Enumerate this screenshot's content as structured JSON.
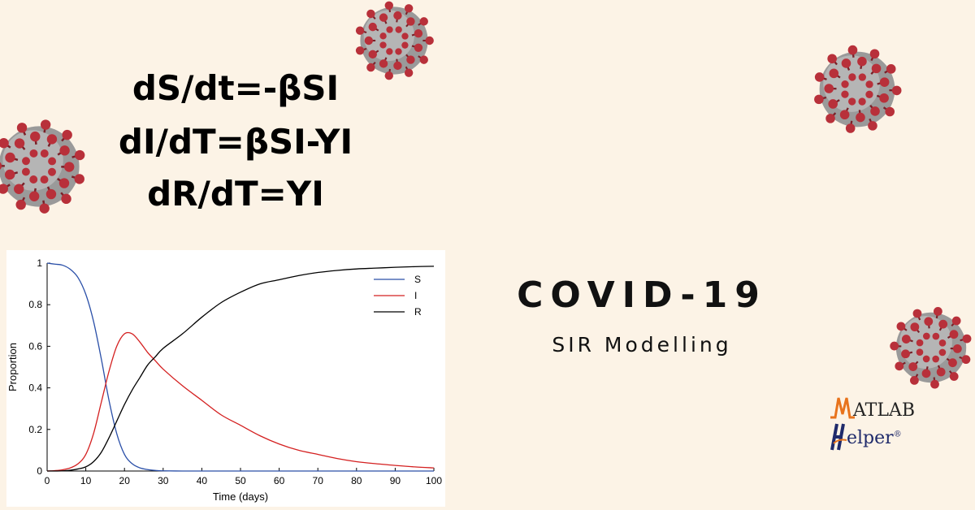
{
  "equations": [
    "dS/dt=-βSI",
    "dI/dT=βSI-YI",
    "dR/dT=YI"
  ],
  "title": "COVID-19",
  "subtitle": "SIR Modelling",
  "logo": {
    "line1": "ATLAB",
    "line2": "elper",
    "reg": "®"
  },
  "colors": {
    "background": "#fcf3e6",
    "virus": "#b8303a",
    "S": "#2a4fa8",
    "I": "#d42020",
    "R": "#000000",
    "logo_orange": "#e8731c"
  },
  "chart_data": {
    "type": "line",
    "xlabel": "Time (days)",
    "ylabel": "Proportion",
    "xlim": [
      0,
      100
    ],
    "ylim": [
      0,
      1
    ],
    "xticks": [
      0,
      10,
      20,
      30,
      40,
      50,
      60,
      70,
      80,
      90,
      100
    ],
    "yticks": [
      0,
      0.2,
      0.4,
      0.6,
      0.8,
      1
    ],
    "ytick_labels": [
      "0",
      "0.2",
      "0.4",
      "0.6",
      "0.8",
      "1"
    ],
    "legend": "top-right",
    "x": [
      0,
      2,
      4,
      6,
      8,
      10,
      12,
      14,
      16,
      18,
      20,
      22,
      24,
      26,
      28,
      30,
      35,
      40,
      45,
      50,
      55,
      60,
      65,
      70,
      75,
      80,
      85,
      90,
      95,
      100
    ],
    "series": [
      {
        "name": "S",
        "color": "#2a4fa8",
        "values": [
          1.0,
          0.995,
          0.99,
          0.97,
          0.93,
          0.85,
          0.72,
          0.54,
          0.34,
          0.18,
          0.08,
          0.035,
          0.015,
          0.007,
          0.003,
          0.001,
          0,
          0,
          0,
          0,
          0,
          0,
          0,
          0,
          0,
          0,
          0,
          0,
          0,
          0
        ]
      },
      {
        "name": "I",
        "color": "#d42020",
        "values": [
          0.0,
          0.002,
          0.006,
          0.015,
          0.035,
          0.08,
          0.18,
          0.33,
          0.48,
          0.6,
          0.66,
          0.66,
          0.62,
          0.57,
          0.53,
          0.49,
          0.41,
          0.34,
          0.27,
          0.22,
          0.17,
          0.13,
          0.1,
          0.08,
          0.06,
          0.045,
          0.035,
          0.027,
          0.02,
          0.015
        ]
      },
      {
        "name": "R",
        "color": "#000000",
        "values": [
          0.0,
          0.0,
          0.001,
          0.004,
          0.01,
          0.02,
          0.045,
          0.09,
          0.16,
          0.24,
          0.32,
          0.39,
          0.45,
          0.51,
          0.55,
          0.59,
          0.66,
          0.74,
          0.81,
          0.86,
          0.9,
          0.92,
          0.94,
          0.955,
          0.965,
          0.972,
          0.976,
          0.98,
          0.983,
          0.985
        ]
      }
    ]
  }
}
